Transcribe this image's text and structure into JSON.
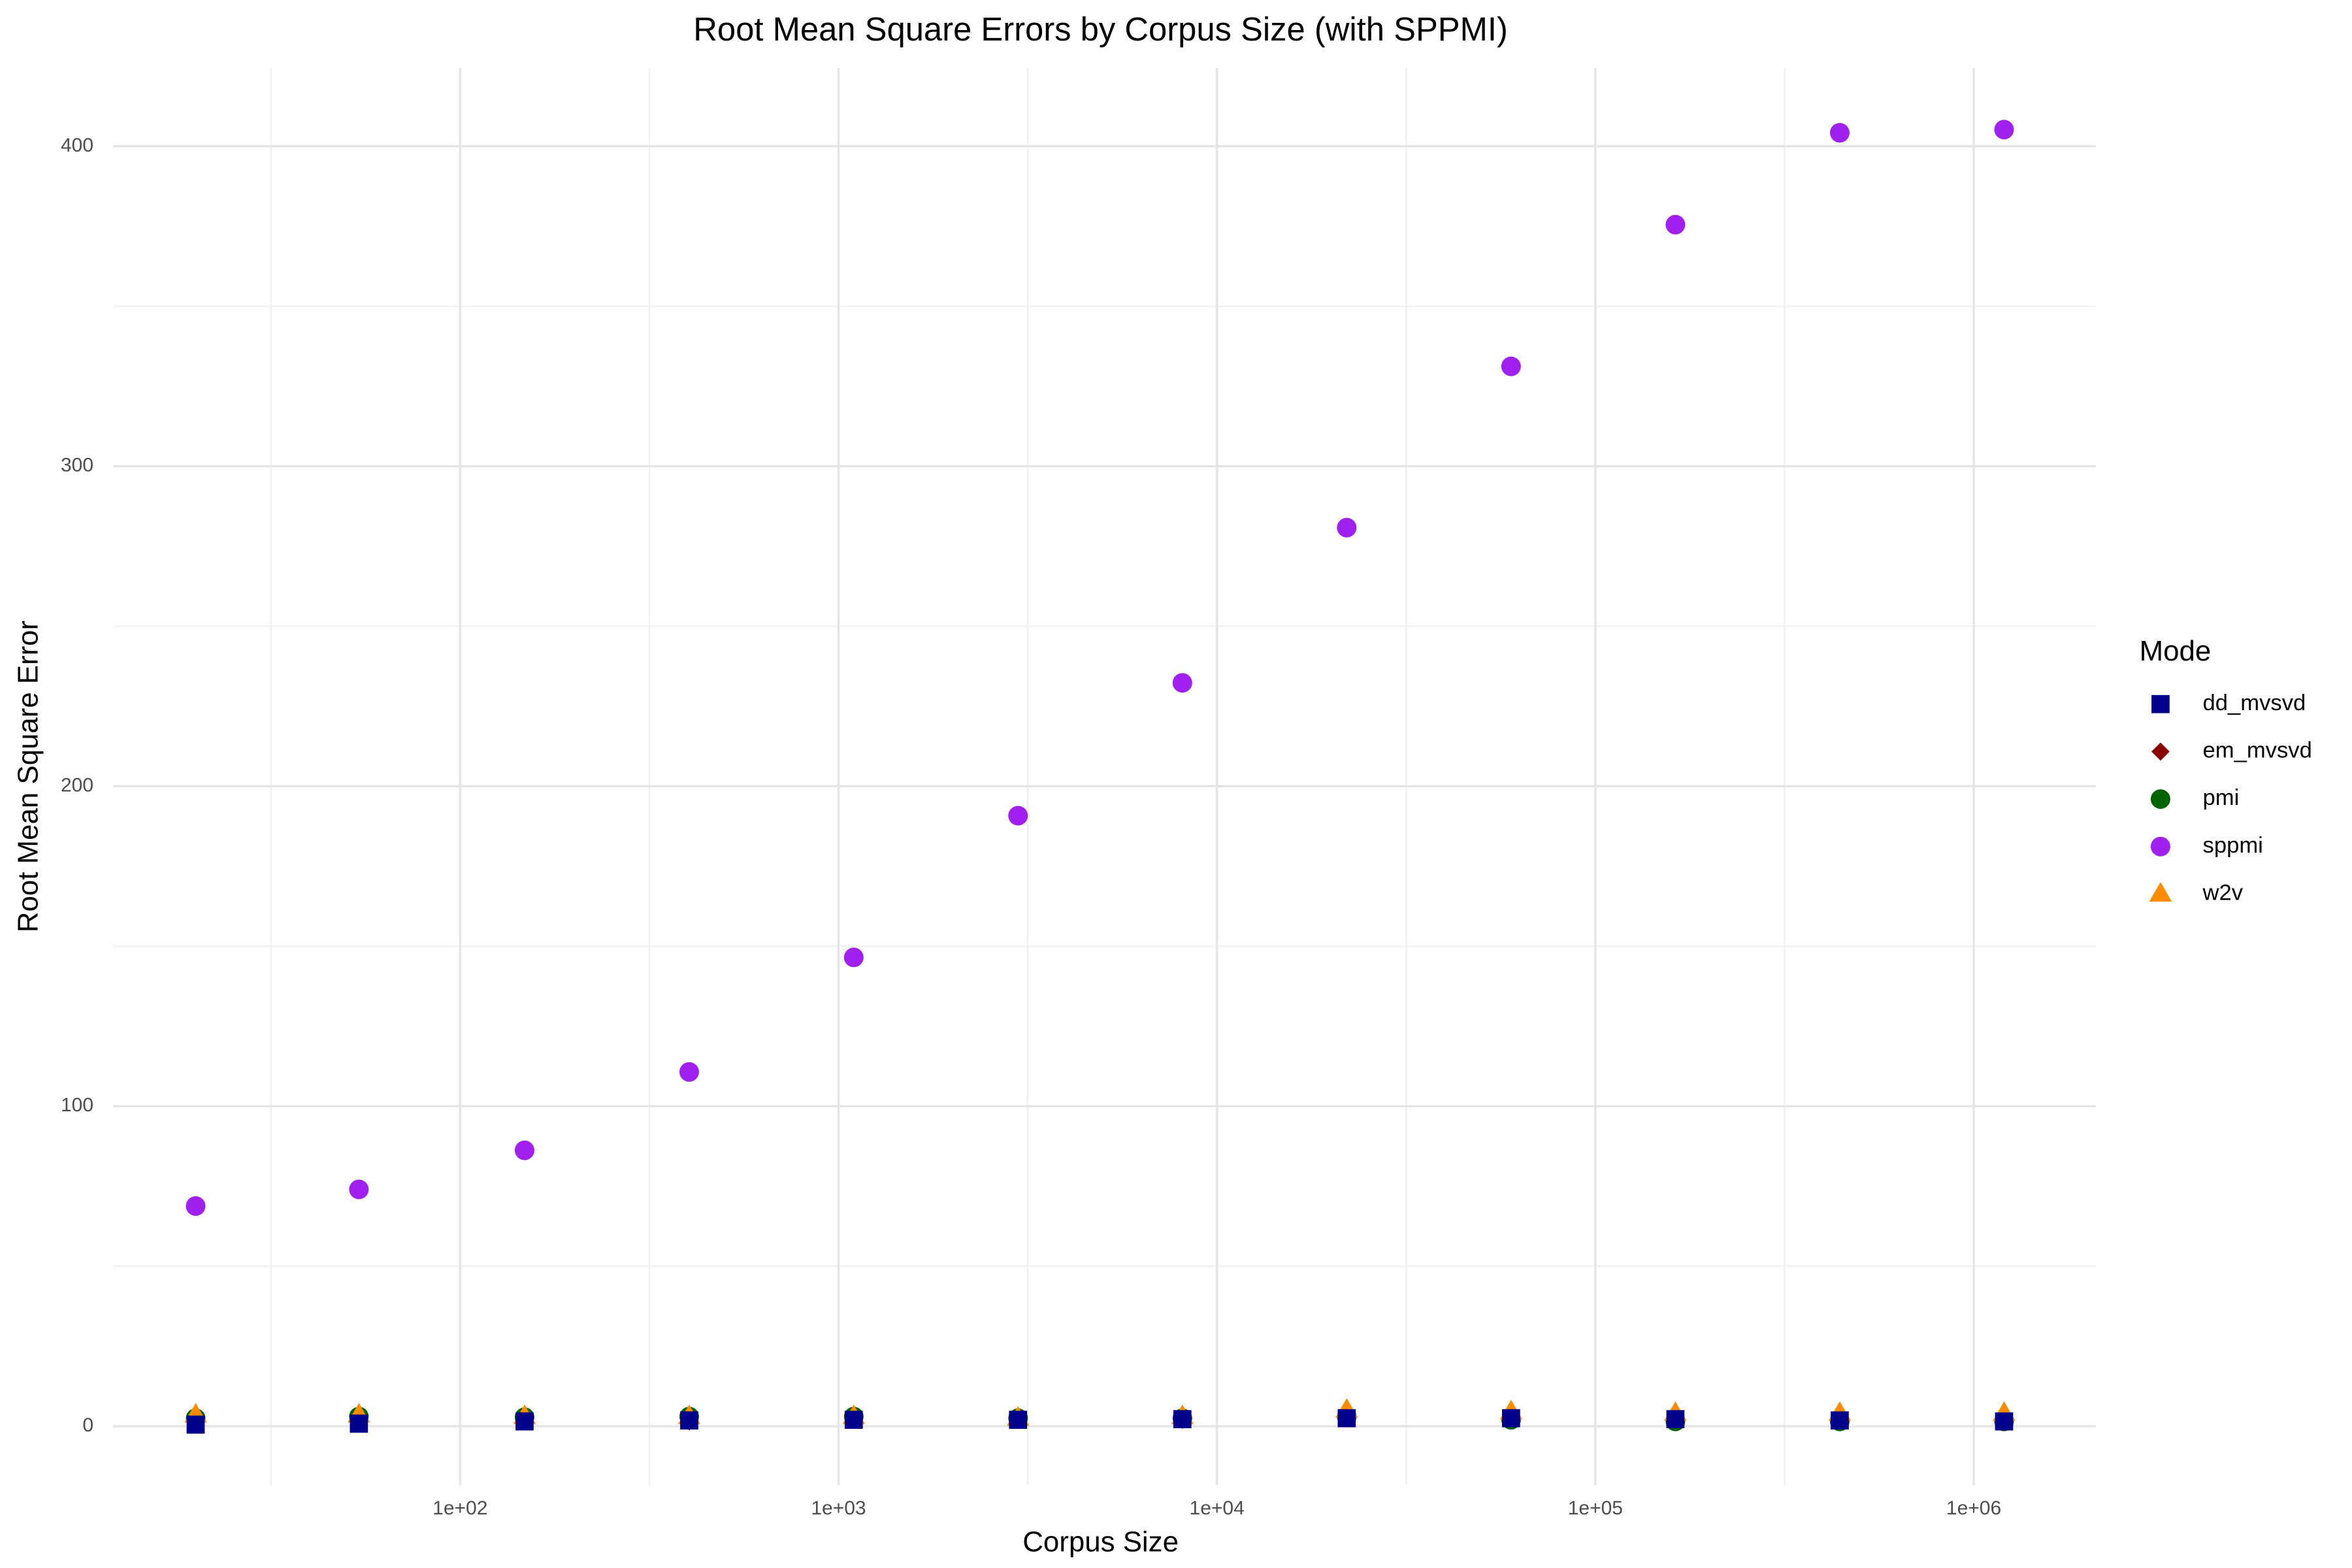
{
  "chart_data": {
    "type": "scatter",
    "title": "Root Mean Square Errors by Corpus Size (with SPPMI)",
    "x_label": "Corpus Size",
    "y_label": "Root Mean Square Error",
    "legend_title": "Mode",
    "legend_position": "right",
    "xscale": "log",
    "grid": true,
    "x": [
      20,
      54,
      148,
      403,
      1097,
      2981,
      8103,
      22026,
      59874,
      162755,
      442413,
      1202604
    ],
    "xlim": [
      12.1,
      2100000
    ],
    "xticks": [
      {
        "value": 100,
        "label": "1e+02"
      },
      {
        "value": 1000,
        "label": "1e+03"
      },
      {
        "value": 10000,
        "label": "1e+04"
      },
      {
        "value": 100000,
        "label": "1e+05"
      },
      {
        "value": 1000000,
        "label": "1e+06"
      }
    ],
    "ylim": [
      -18.4,
      424.5
    ],
    "yticks": [
      0,
      100,
      200,
      300,
      400
    ],
    "series": [
      {
        "name": "dd_mvsvd",
        "color": "#00008b",
        "shape": "square",
        "values": [
          0.5,
          0.8,
          1.5,
          1.8,
          2,
          2,
          2.2,
          2.5,
          2.5,
          2.2,
          1.8,
          1.5
        ]
      },
      {
        "name": "em_mvsvd",
        "color": "#8b0000",
        "shape": "diamond",
        "values": [
          1,
          1,
          1.5,
          1.5,
          2,
          2,
          2,
          2.5,
          2.5,
          2,
          2,
          1.5
        ]
      },
      {
        "name": "pmi",
        "color": "#006400",
        "shape": "circle",
        "values": [
          2.5,
          3,
          2.8,
          3,
          3,
          2.5,
          2.5,
          3,
          2,
          1.5,
          1.5,
          1.5
        ]
      },
      {
        "name": "sppmi",
        "color": "#a020f0",
        "shape": "circle",
        "values": [
          68.8,
          74,
          86.2,
          110.7,
          146.5,
          190.8,
          232.3,
          280.8,
          331.2,
          375.5,
          404.2,
          405.2
        ]
      },
      {
        "name": "w2v",
        "color": "#ff8c00",
        "shape": "triangle",
        "values": [
          3.5,
          3.5,
          3,
          3,
          3,
          2.5,
          3,
          5,
          4.5,
          4,
          4,
          4
        ]
      }
    ]
  }
}
